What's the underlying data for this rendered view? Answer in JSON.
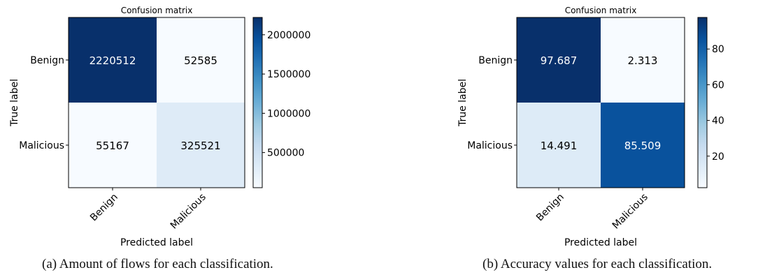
{
  "chart_data": [
    {
      "type": "heatmap",
      "title": "Confusion matrix",
      "xlabel": "Predicted label",
      "ylabel": "True label",
      "x_categories": [
        "Benign",
        "Malicious"
      ],
      "y_categories": [
        "Benign",
        "Malicious"
      ],
      "values": [
        [
          2220512,
          52585
        ],
        [
          55167,
          325521
        ]
      ],
      "labels": [
        [
          "2220512",
          "52585"
        ],
        [
          "55167",
          "325521"
        ]
      ],
      "colorbar": {
        "min": 52585,
        "max": 2220512,
        "ticks": [
          500000,
          1000000,
          1500000,
          2000000
        ]
      },
      "colormap": "Blues",
      "caption": "(a) Amount of flows for each classification."
    },
    {
      "type": "heatmap",
      "title": "Confusion matrix",
      "xlabel": "Predicted label",
      "ylabel": "True label",
      "x_categories": [
        "Benign",
        "Malicious"
      ],
      "y_categories": [
        "Benign",
        "Malicious"
      ],
      "values": [
        [
          97.687,
          2.313
        ],
        [
          14.491,
          85.509
        ]
      ],
      "labels": [
        [
          "97.687",
          "2.313"
        ],
        [
          "14.491",
          "85.509"
        ]
      ],
      "colorbar": {
        "min": 2.313,
        "max": 97.687,
        "ticks": [
          20,
          40,
          60,
          80
        ]
      },
      "colormap": "Blues",
      "caption": "(b) Accuracy values for each classification."
    }
  ]
}
